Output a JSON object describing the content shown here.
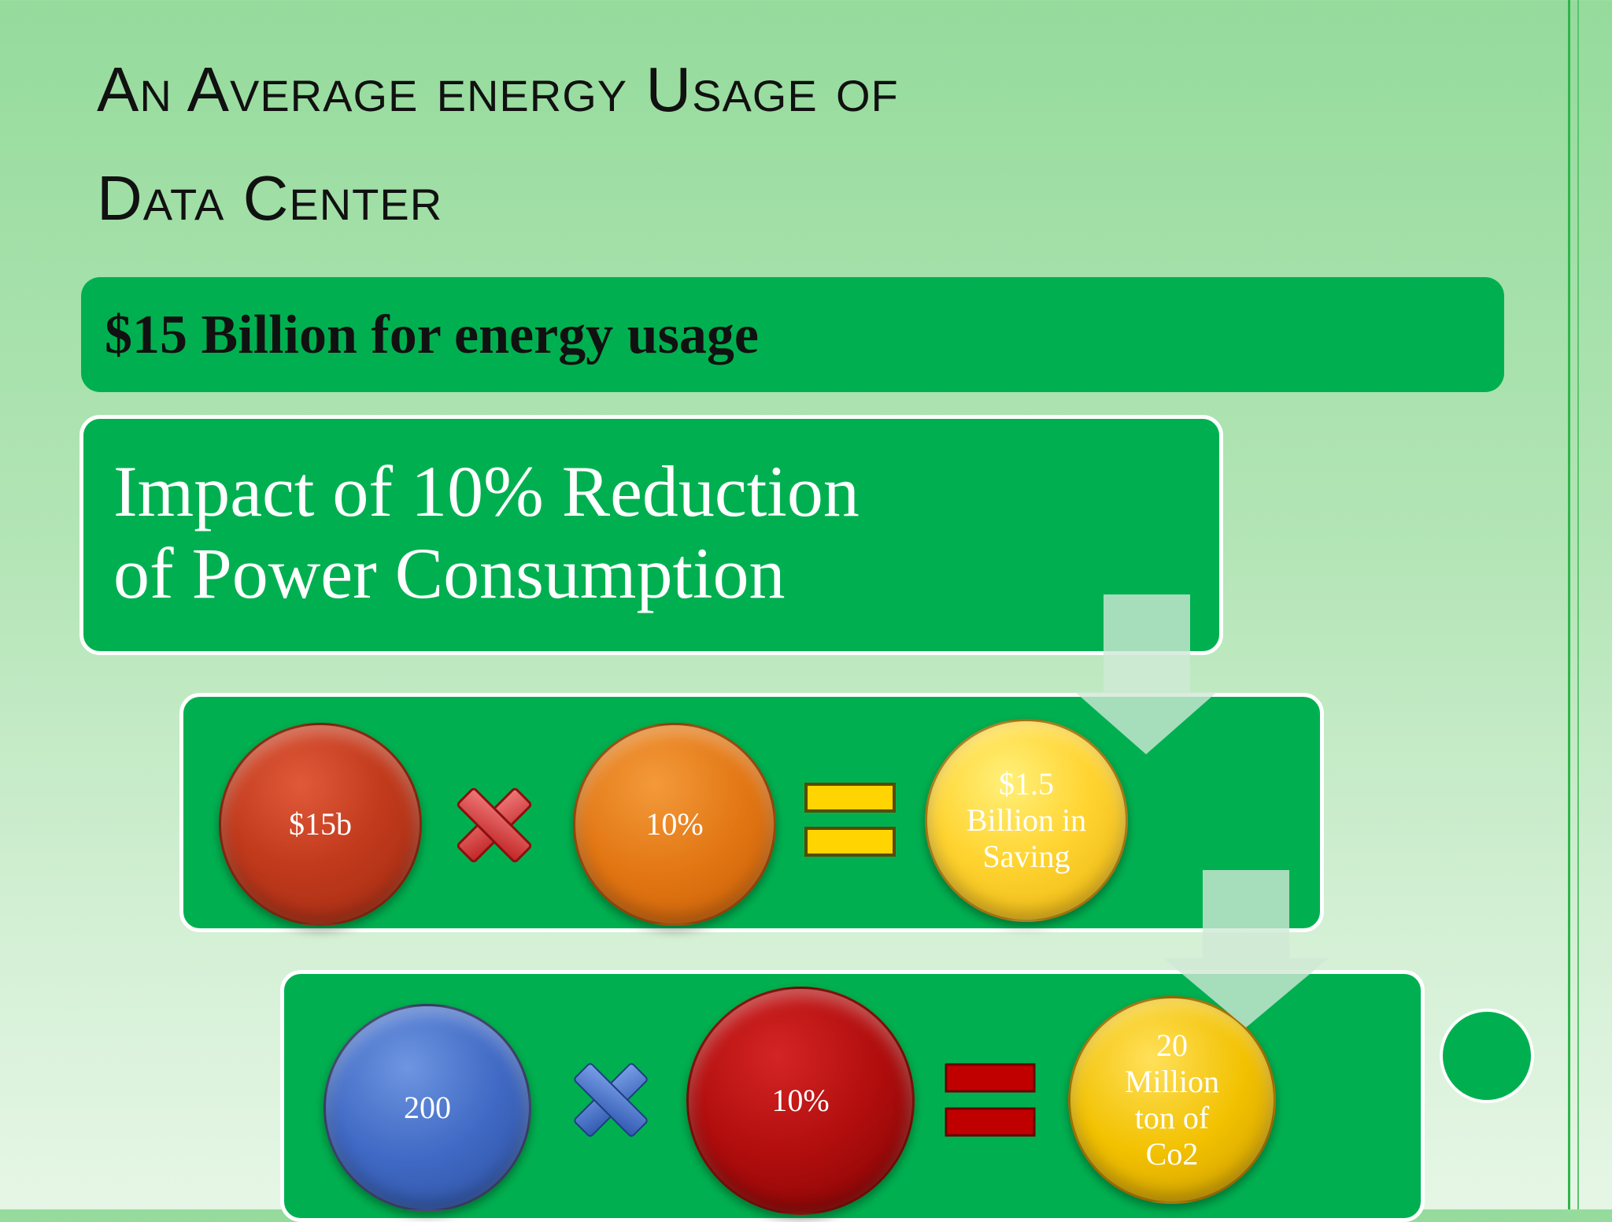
{
  "slide": {
    "title_line1": "An Average energy Usage of",
    "title_line2": "Data Center",
    "banner": "$15 Billion for energy usage",
    "impact_line1": "Impact of 10% Reduction",
    "impact_line2": "of Power Consumption",
    "row1": {
      "a": "$15b",
      "b": "10%",
      "result_lines": [
        "$1.5",
        "Billion in",
        "Saving"
      ]
    },
    "row2": {
      "a": "200",
      "b": "10%",
      "result_lines": [
        "20",
        "Million",
        "ton of",
        "Co2"
      ]
    }
  },
  "colors": {
    "green": "#00b050",
    "row1_operator": "#e03b3b",
    "row1_equals": "#ffd400",
    "row2_operator": "#4472c4",
    "row2_equals": "#c00000"
  }
}
